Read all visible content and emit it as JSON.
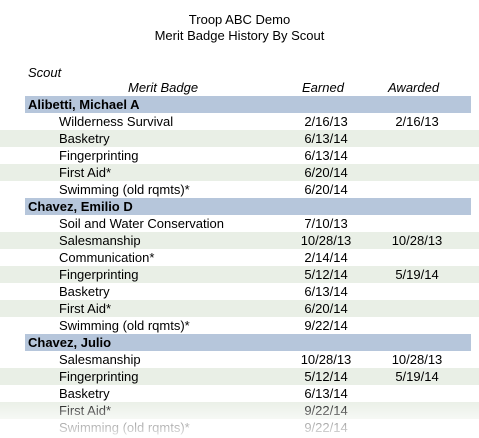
{
  "report": {
    "title": "Troop ABC Demo",
    "subtitle": "Merit Badge History By Scout"
  },
  "columns": {
    "scout": "Scout",
    "merit_badge": "Merit Badge",
    "earned": "Earned",
    "awarded": "Awarded"
  },
  "scouts": [
    {
      "name": "Alibetti, Michael A",
      "badges": [
        {
          "name": "Wilderness Survival",
          "earned": "2/16/13",
          "awarded": "2/16/13"
        },
        {
          "name": "Basketry",
          "earned": "6/13/14",
          "awarded": ""
        },
        {
          "name": "Fingerprinting",
          "earned": "6/13/14",
          "awarded": ""
        },
        {
          "name": "First Aid*",
          "earned": "6/20/14",
          "awarded": ""
        },
        {
          "name": "Swimming (old rqmts)*",
          "earned": "6/20/14",
          "awarded": ""
        }
      ]
    },
    {
      "name": "Chavez, Emilio D",
      "badges": [
        {
          "name": "Soil and Water Conservation",
          "earned": "7/10/13",
          "awarded": ""
        },
        {
          "name": "Salesmanship",
          "earned": "10/28/13",
          "awarded": "10/28/13"
        },
        {
          "name": "Communication*",
          "earned": "2/14/14",
          "awarded": ""
        },
        {
          "name": "Fingerprinting",
          "earned": "5/12/14",
          "awarded": "5/19/14"
        },
        {
          "name": "Basketry",
          "earned": "6/13/14",
          "awarded": ""
        },
        {
          "name": "First Aid*",
          "earned": "6/20/14",
          "awarded": ""
        },
        {
          "name": "Swimming (old rqmts)*",
          "earned": "9/22/14",
          "awarded": ""
        }
      ]
    },
    {
      "name": "Chavez, Julio",
      "badges": [
        {
          "name": "Salesmanship",
          "earned": "10/28/13",
          "awarded": "10/28/13"
        },
        {
          "name": "Fingerprinting",
          "earned": "5/12/14",
          "awarded": "5/19/14"
        },
        {
          "name": "Basketry",
          "earned": "6/13/14",
          "awarded": ""
        },
        {
          "name": "First Aid*",
          "earned": "9/22/14",
          "awarded": ""
        },
        {
          "name": "Swimming (old rqmts)*",
          "earned": "9/22/14",
          "awarded": ""
        }
      ]
    }
  ],
  "colors": {
    "scout_band": "#b6c6db",
    "alt_row": "#e9efe6"
  }
}
